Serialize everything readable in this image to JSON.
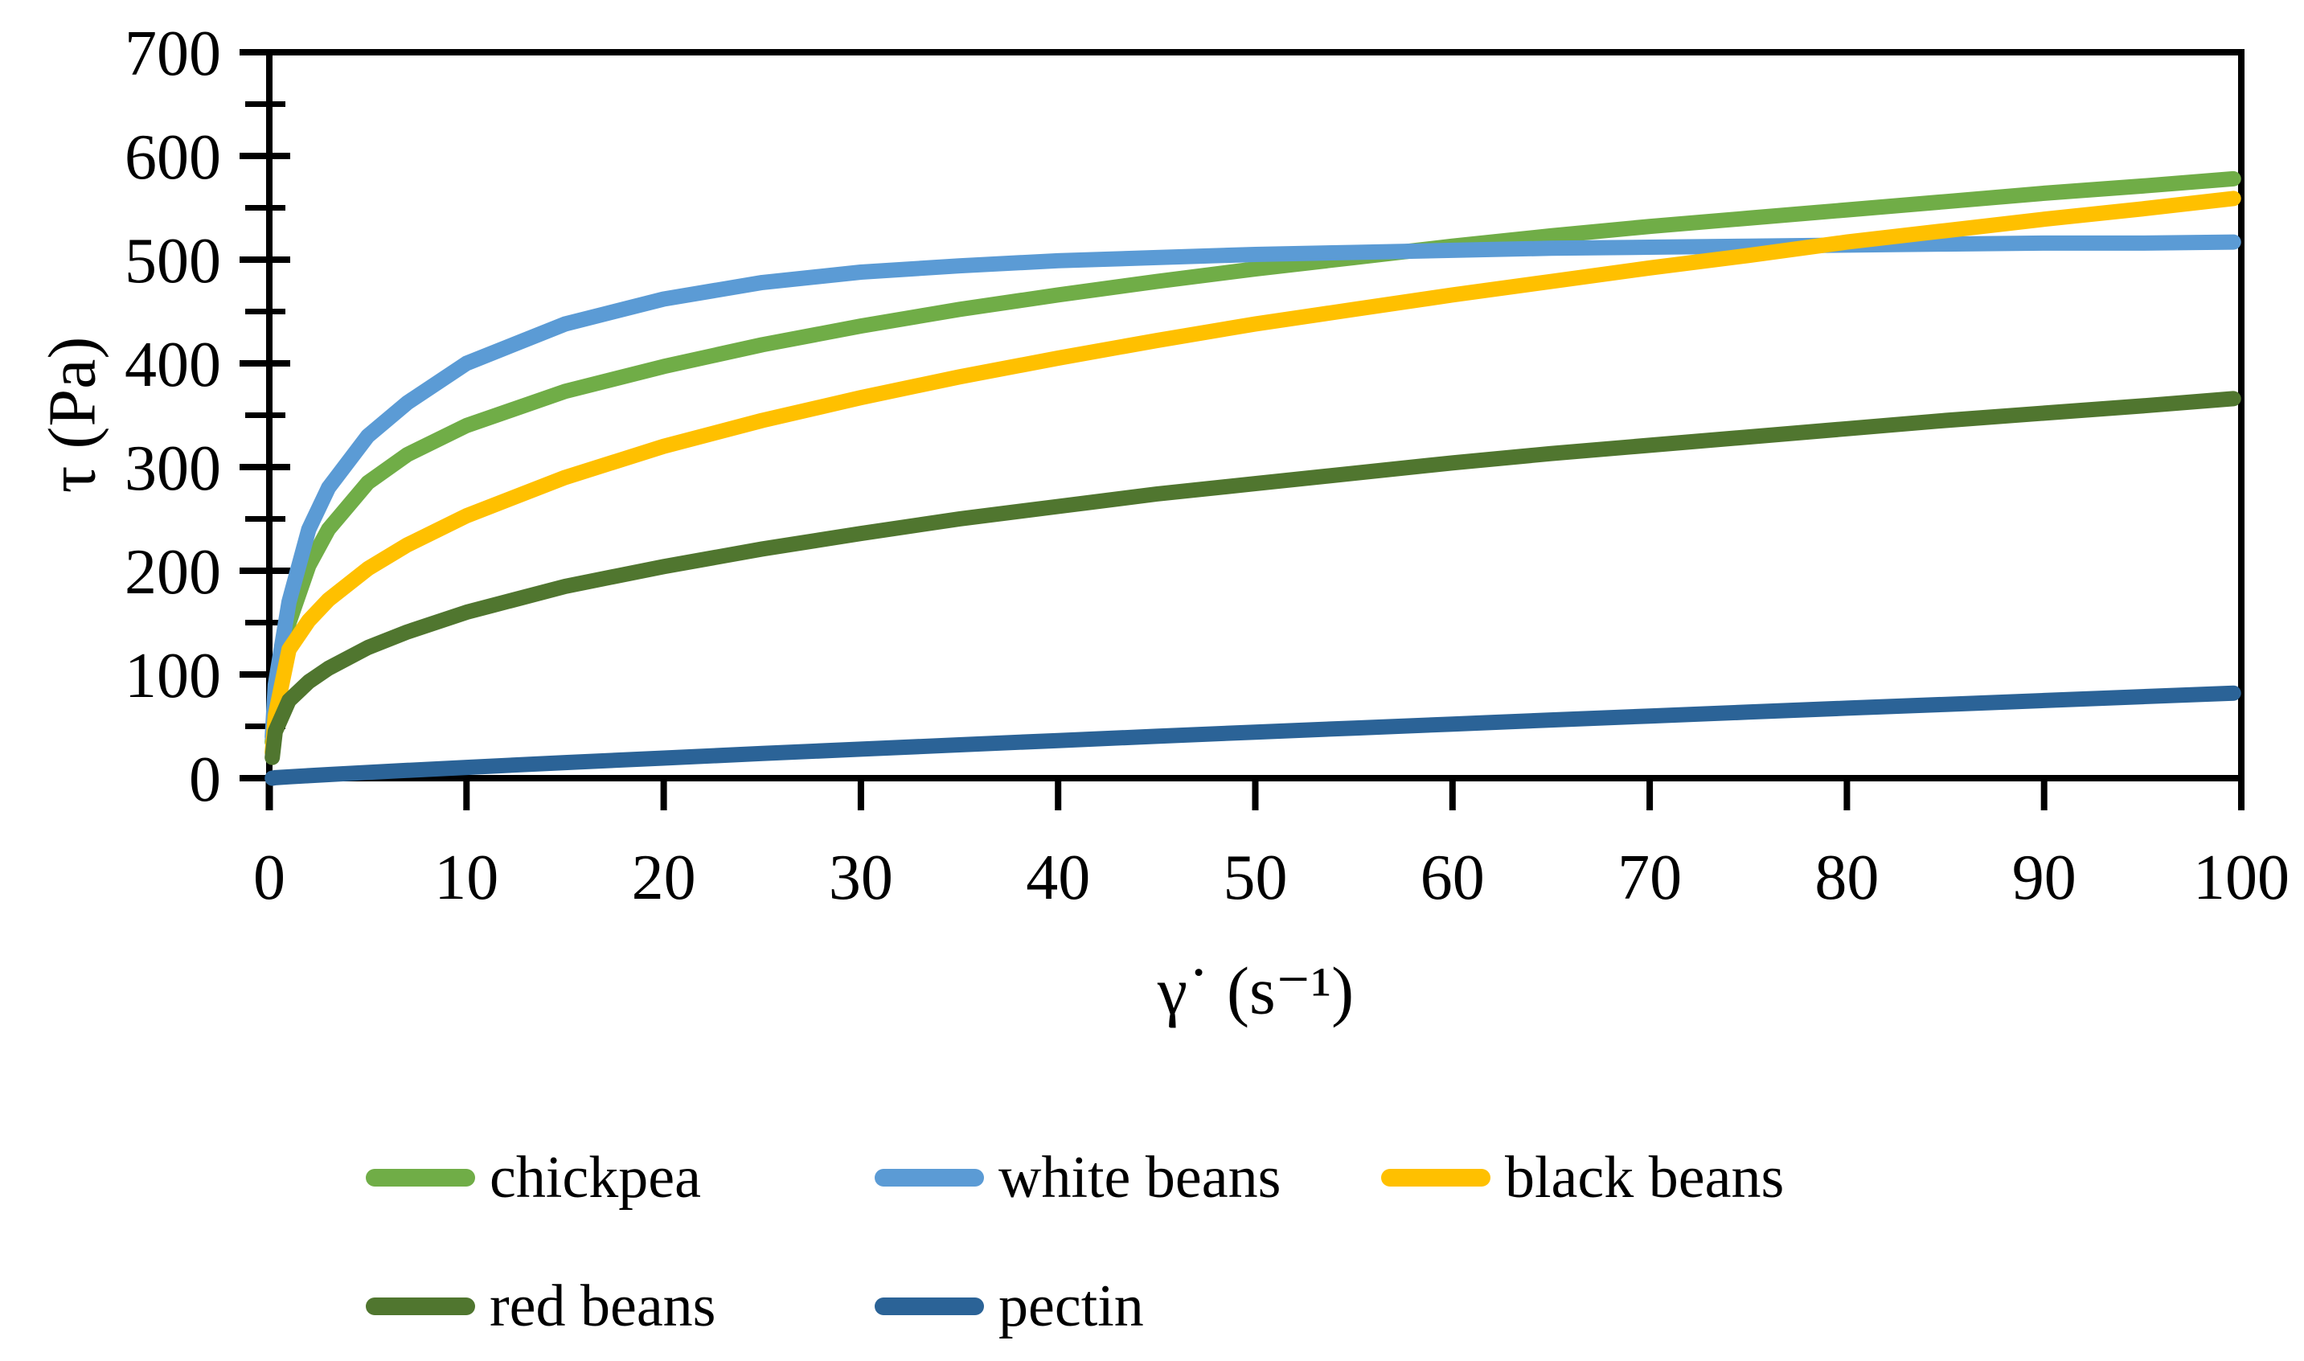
{
  "chart_data": {
    "type": "line",
    "title": "",
    "xlabel": "γ˙ (s⁻¹)",
    "ylabel": "τ (Pa)",
    "xlim": [
      0,
      100
    ],
    "ylim": [
      0,
      700
    ],
    "x_ticks": [
      0,
      10,
      20,
      30,
      40,
      50,
      60,
      70,
      80,
      90,
      100
    ],
    "y_ticks": [
      0,
      100,
      200,
      300,
      400,
      500,
      600,
      700
    ],
    "y_minor_tick_interval": 50,
    "grid": "off",
    "legend_position": "bottom",
    "axis_color": "#000000",
    "background_color": "#ffffff",
    "x": [
      0.15,
      0.3,
      1,
      2,
      3,
      5,
      7,
      10,
      15,
      20,
      25,
      30,
      35,
      40,
      45,
      50,
      55,
      60,
      65,
      70,
      75,
      80,
      85,
      90,
      95,
      99.6
    ],
    "series": [
      {
        "name": "chickpea",
        "color": "#70AD47",
        "values": [
          35,
          75,
          150,
          205,
          240,
          285,
          312,
          340,
          373,
          397,
          418,
          436,
          452,
          466,
          479,
          491,
          502,
          513,
          523,
          532,
          540,
          548,
          556,
          564,
          571,
          578
        ]
      },
      {
        "name": "white beans",
        "color": "#5B9BD5",
        "values": [
          40,
          90,
          170,
          240,
          280,
          330,
          362,
          400,
          438,
          462,
          478,
          488,
          494,
          499,
          502,
          505,
          507,
          509,
          511,
          512,
          513,
          514,
          515,
          516,
          516,
          517
        ]
      },
      {
        "name": "black beans",
        "color": "#FFC000",
        "values": [
          25,
          60,
          124,
          152,
          172,
          202,
          225,
          253,
          290,
          320,
          345,
          367,
          387,
          405,
          422,
          438,
          452,
          466,
          479,
          492,
          504,
          517,
          528,
          539,
          549,
          559
        ]
      },
      {
        "name": "red beans",
        "color": "#50762F",
        "values": [
          20,
          45,
          75,
          93,
          106,
          126,
          141,
          160,
          185,
          204,
          221,
          236,
          250,
          262,
          274,
          284,
          294,
          304,
          313,
          321,
          329,
          337,
          345,
          352,
          359,
          366
        ]
      },
      {
        "name": "pectin",
        "color": "#2B6397",
        "values": [
          0,
          0.5,
          1.3,
          2.4,
          3.5,
          5.6,
          7.5,
          10.4,
          15,
          19.4,
          23.8,
          28,
          32.2,
          36.3,
          40.4,
          44.4,
          48.3,
          52.2,
          56.1,
          59.9,
          63.7,
          67.5,
          71.2,
          74.9,
          78.6,
          82
        ]
      }
    ]
  }
}
